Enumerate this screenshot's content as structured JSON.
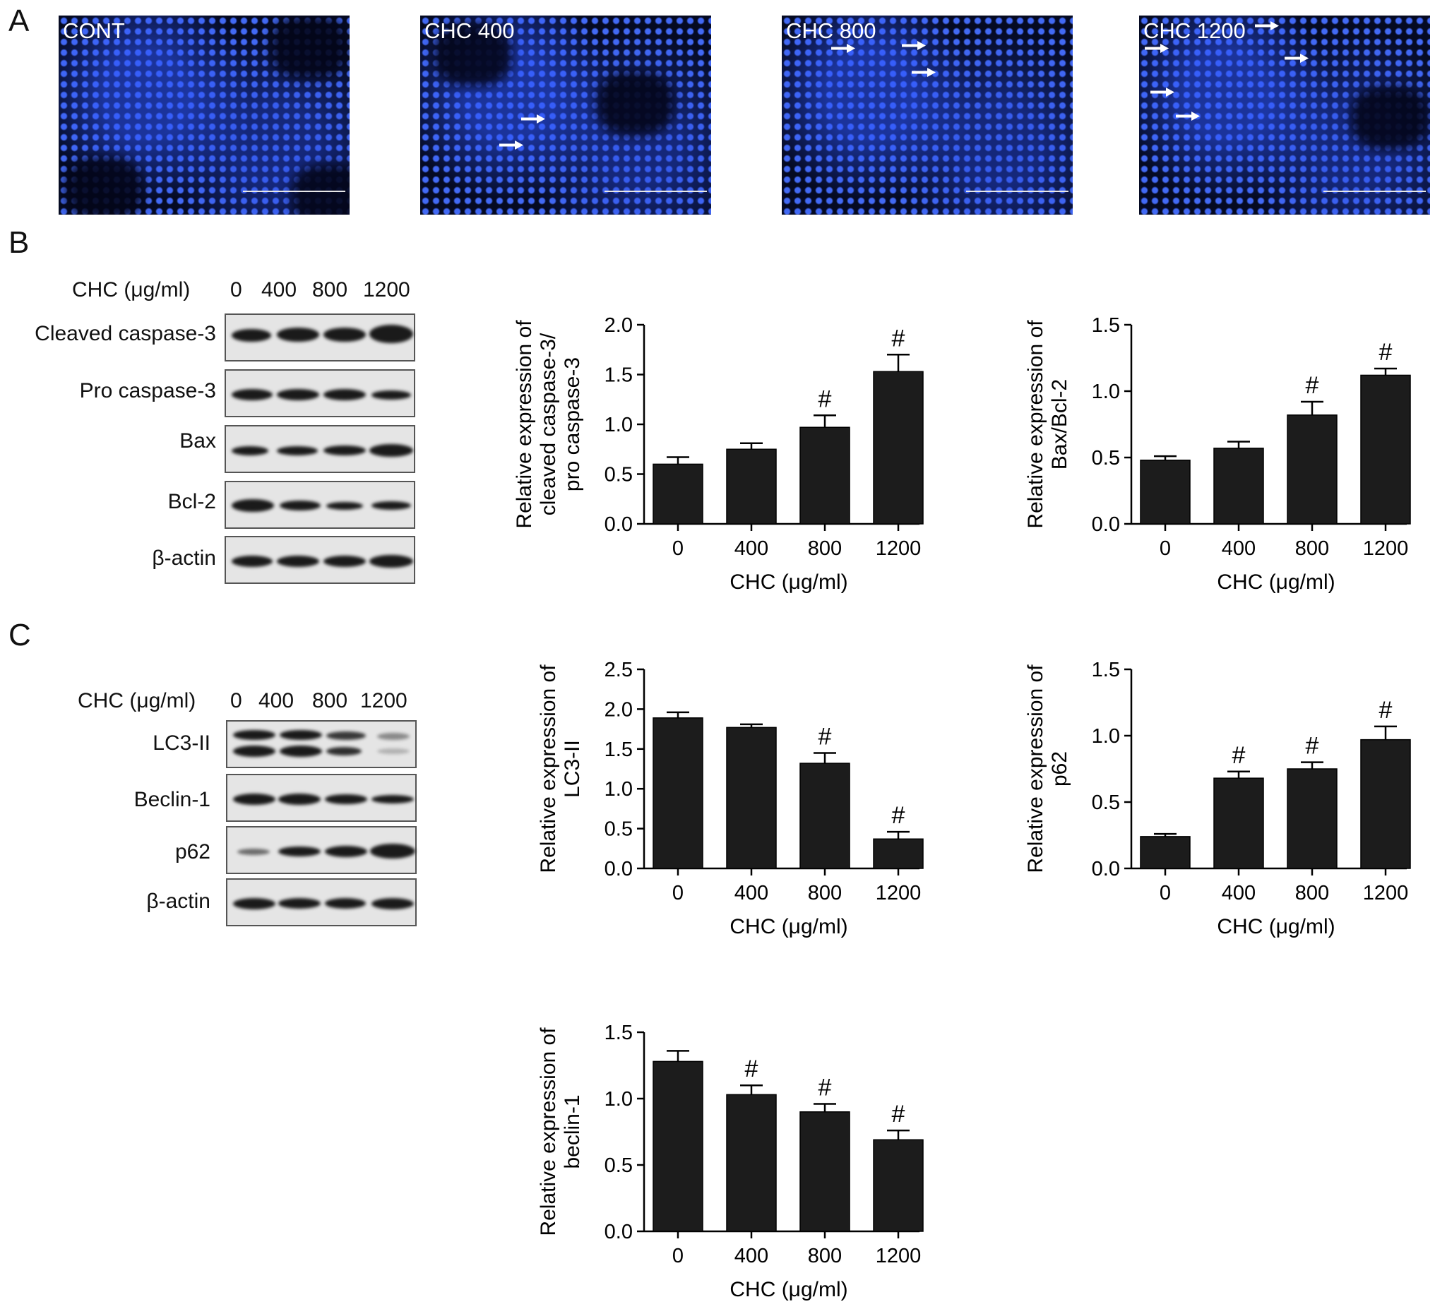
{
  "panels": {
    "a": "A",
    "b": "B",
    "c": "C"
  },
  "micrographs": [
    {
      "label": "CONT"
    },
    {
      "label": "CHC 400"
    },
    {
      "label": "CHC 800"
    },
    {
      "label": "CHC 1200"
    }
  ],
  "blot_b": {
    "header_label": "CHC (μg/ml)",
    "lanes": [
      "0",
      "400",
      "800",
      "1200"
    ],
    "rows": [
      "Cleaved caspase-3",
      "Pro caspase-3",
      "Bax",
      "Bcl-2",
      "β-actin"
    ]
  },
  "blot_c": {
    "header_label": "CHC (μg/ml)",
    "lanes": [
      "0",
      "400",
      "800",
      "1200"
    ],
    "rows": [
      "LC3-II",
      "Beclin-1",
      "p62",
      "β-actin"
    ]
  },
  "chart_data": [
    {
      "type": "bar",
      "ylabel_lines": [
        "Relative expression of",
        "cleaved caspase-3/",
        "pro caspase-3"
      ],
      "xlabel": "CHC (μg/ml)",
      "categories": [
        "0",
        "400",
        "800",
        "1200"
      ],
      "values": [
        0.6,
        0.75,
        0.97,
        1.53
      ],
      "errors": [
        0.07,
        0.06,
        0.12,
        0.17
      ],
      "significance": [
        "",
        "",
        "#",
        "#"
      ],
      "ylim": [
        0,
        2.0
      ],
      "yticks": [
        "0.0",
        "0.5",
        "1.0",
        "1.5",
        "2.0"
      ]
    },
    {
      "type": "bar",
      "ylabel_lines": [
        "Relative expression of",
        "Bax/Bcl-2"
      ],
      "xlabel": "CHC (μg/ml)",
      "categories": [
        "0",
        "400",
        "800",
        "1200"
      ],
      "values": [
        0.48,
        0.57,
        0.82,
        1.12
      ],
      "errors": [
        0.03,
        0.05,
        0.1,
        0.05
      ],
      "significance": [
        "",
        "",
        "#",
        "#"
      ],
      "ylim": [
        0,
        1.5
      ],
      "yticks": [
        "0.0",
        "0.5",
        "1.0",
        "1.5"
      ]
    },
    {
      "type": "bar",
      "ylabel_lines": [
        "Relative expression of",
        "LC3-II"
      ],
      "xlabel": "CHC (μg/ml)",
      "categories": [
        "0",
        "400",
        "800",
        "1200"
      ],
      "values": [
        1.89,
        1.77,
        1.32,
        0.37
      ],
      "errors": [
        0.07,
        0.04,
        0.13,
        0.09
      ],
      "significance": [
        "",
        "",
        "#",
        "#"
      ],
      "ylim": [
        0,
        2.5
      ],
      "yticks": [
        "0.0",
        "0.5",
        "1.0",
        "1.5",
        "2.0",
        "2.5"
      ]
    },
    {
      "type": "bar",
      "ylabel_lines": [
        "Relative expression of",
        "p62"
      ],
      "xlabel": "CHC (μg/ml)",
      "categories": [
        "0",
        "400",
        "800",
        "1200"
      ],
      "values": [
        0.24,
        0.68,
        0.75,
        0.97
      ],
      "errors": [
        0.02,
        0.05,
        0.05,
        0.1
      ],
      "significance": [
        "",
        "#",
        "#",
        "#"
      ],
      "ylim": [
        0,
        1.5
      ],
      "yticks": [
        "0.0",
        "0.5",
        "1.0",
        "1.5"
      ]
    },
    {
      "type": "bar",
      "ylabel_lines": [
        "Relative expression of",
        "beclin-1"
      ],
      "xlabel": "CHC (μg/ml)",
      "categories": [
        "0",
        "400",
        "800",
        "1200"
      ],
      "values": [
        1.28,
        1.03,
        0.9,
        0.69
      ],
      "errors": [
        0.08,
        0.07,
        0.06,
        0.07
      ],
      "significance": [
        "",
        "#",
        "#",
        "#"
      ],
      "ylim": [
        0,
        1.5
      ],
      "yticks": [
        "0.0",
        "0.5",
        "1.0",
        "1.5"
      ]
    }
  ]
}
